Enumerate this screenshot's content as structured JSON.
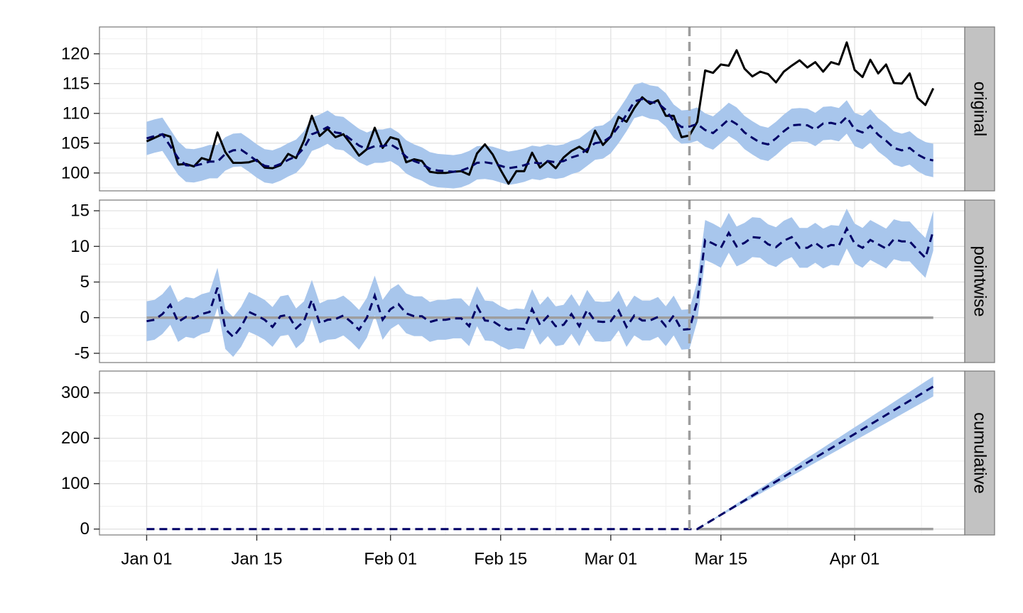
{
  "chart_data": {
    "type": "line",
    "facet_labels": [
      "original",
      "pointwise",
      "cumulative"
    ],
    "x_tick_labels": [
      "Jan 01",
      "Jan 15",
      "Feb 01",
      "Feb 15",
      "Mar 01",
      "Mar 15",
      "Apr 01"
    ],
    "x_ticks": [
      "2014-01-01",
      "2014-01-15",
      "2014-02-01",
      "2014-02-15",
      "2014-03-01",
      "2014-03-15",
      "2014-04-01"
    ],
    "x_range": [
      "2013-12-26",
      "2014-04-15"
    ],
    "x_start": "2014-01-01",
    "intervention_date": "2014-03-11",
    "grid": true,
    "colors": {
      "observed": "#000000",
      "prediction": "#000066",
      "interval": "#a8c6ec",
      "baseline": "#9e9e9e",
      "intervention_line": "#9e9e9e",
      "strip_background": "#c2c2c2",
      "panel_border": "#777777",
      "grid_major": "#e3e3e3",
      "grid_minor": "#f1f1f1"
    },
    "panels": [
      {
        "name": "original",
        "ylim": [
          97,
          124.5
        ],
        "y_ticks": [
          100,
          105,
          110,
          115,
          120
        ],
        "observed": [
          105.3,
          105.9,
          106.5,
          106.1,
          101.4,
          101.5,
          101.1,
          102.5,
          102.1,
          106.8,
          103.5,
          101.7,
          101.7,
          101.8,
          102.2,
          100.9,
          100.8,
          101.3,
          103.2,
          102.5,
          105.4,
          109.6,
          106.2,
          107.4,
          106.0,
          106.5,
          104.8,
          102.9,
          104.0,
          107.6,
          104.2,
          106.0,
          105.6,
          101.8,
          102.3,
          102.0,
          100.2,
          100.0,
          100.0,
          100.2,
          100.3,
          99.7,
          103.3,
          104.8,
          103.1,
          100.5,
          98.2,
          100.3,
          100.3,
          103.4,
          100.9,
          102.0,
          100.8,
          102.6,
          103.7,
          104.4,
          103.5,
          107.1,
          104.7,
          106.1,
          109.4,
          108.6,
          110.9,
          112.7,
          111.6,
          112.2,
          109.6,
          109.6,
          106.0,
          106.3,
          108.6,
          117.2,
          116.8,
          118.2,
          118.0,
          120.6,
          117.5,
          116.2,
          117.0,
          116.6,
          115.2,
          117.0,
          118.0,
          118.9,
          117.7,
          118.6,
          117.0,
          118.6,
          118.2,
          121.9,
          117.3,
          116.1,
          119.0,
          116.7,
          118.2,
          115.1,
          115.0,
          116.7,
          112.6,
          111.4,
          114.2
        ],
        "predicted": [
          105.8,
          106.2,
          106.5,
          104.5,
          102.5,
          101.3,
          101.2,
          101.5,
          101.9,
          101.9,
          103.2,
          103.8,
          103.9,
          103.0,
          102.0,
          101.2,
          101.0,
          101.5,
          102.2,
          102.8,
          104.2,
          106.5,
          107.0,
          107.7,
          106.8,
          106.6,
          105.6,
          104.6,
          104.0,
          104.5,
          104.5,
          104.8,
          104.0,
          102.7,
          102.0,
          101.5,
          100.7,
          100.4,
          100.3,
          100.2,
          100.4,
          100.9,
          101.7,
          101.8,
          101.6,
          101.2,
          100.8,
          101.0,
          101.3,
          101.8,
          101.6,
          102.0,
          101.8,
          102.0,
          102.6,
          103.0,
          104.0,
          105.0,
          105.2,
          106.1,
          107.8,
          109.8,
          112.0,
          112.4,
          111.9,
          111.7,
          110.6,
          108.7,
          107.7,
          107.8,
          108.2,
          107.2,
          106.7,
          107.8,
          109.0,
          108.2,
          106.8,
          105.9,
          105.1,
          104.8,
          105.8,
          107.0,
          108.0,
          108.1,
          108.0,
          107.3,
          108.3,
          108.4,
          108.1,
          109.4,
          107.3,
          106.8,
          107.9,
          106.4,
          105.4,
          104.2,
          103.8,
          104.2,
          103.1,
          102.4,
          102.1
        ],
        "interval_halfwidth": 2.8
      },
      {
        "name": "pointwise",
        "ylim": [
          -6.3,
          16.5
        ],
        "y_ticks": [
          -5,
          0,
          5,
          10,
          15
        ],
        "predicted": [
          -0.5,
          -0.3,
          0.5,
          1.8,
          -0.6,
          0.1,
          -0.1,
          0.5,
          0.8,
          4.2,
          -1.6,
          -2.7,
          -1.3,
          0.8,
          0.3,
          -0.3,
          -1.3,
          0.2,
          0.4,
          -1.5,
          -0.5,
          2.5,
          -0.8,
          -0.3,
          -0.2,
          0.3,
          -0.6,
          -1.7,
          0.0,
          3.1,
          -0.3,
          1.2,
          1.9,
          0.6,
          0.2,
          0.2,
          -0.6,
          -0.3,
          -0.3,
          -0.1,
          -0.1,
          -1.2,
          1.6,
          -0.4,
          -0.5,
          -1.2,
          -1.7,
          -1.5,
          -1.6,
          1.2,
          -1.0,
          0.2,
          -1.2,
          -1.0,
          0.5,
          -1.2,
          1.1,
          -0.5,
          -0.6,
          -0.5,
          1.0,
          -1.3,
          0.3,
          -0.4,
          -0.4,
          0.1,
          -1.2,
          0.3,
          -1.7,
          -1.6,
          2.3,
          10.9,
          10.4,
          9.8,
          11.9,
          10.0,
          10.5,
          11.3,
          11.2,
          10.3,
          9.9,
          10.8,
          11.3,
          9.8,
          9.8,
          10.5,
          9.7,
          10.2,
          10.1,
          12.5,
          10.4,
          9.8,
          10.9,
          10.3,
          9.7,
          11.0,
          10.7,
          10.7,
          9.5,
          8.4,
          12.2
        ],
        "interval_halfwidth": 2.8,
        "baseline": 0
      },
      {
        "name": "cumulative",
        "ylim": [
          -13,
          348
        ],
        "y_ticks": [
          0,
          100,
          200,
          300
        ],
        "start_index": 70,
        "end_value": 314,
        "interval_end_halfwidth": 22,
        "baseline": 0
      }
    ]
  }
}
